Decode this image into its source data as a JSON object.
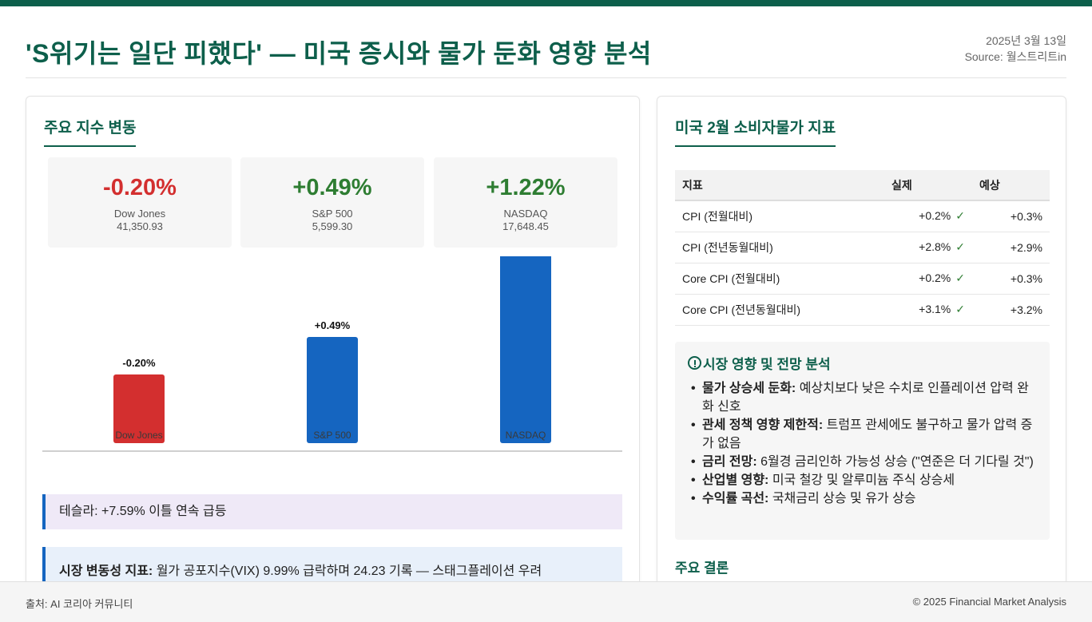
{
  "header": {
    "title": "'S위기는 일단 피했다' — 미국 증시와 물가 둔화 영향 분석",
    "date": "2025년 3월 13일",
    "source": "Source: 월스트리트in"
  },
  "left_panel": {
    "section_title": "주요 지수 변동",
    "stats": [
      {
        "change": "-0.20%",
        "name": "Dow Jones",
        "value": "41,350.93"
      },
      {
        "change": "+0.49%",
        "name": "S&P 500",
        "value": "5,599.30"
      },
      {
        "change": "+1.22%",
        "name": "NASDAQ",
        "value": "17,648.45"
      }
    ],
    "notes": {
      "tesla": "테슬라: +7.59% 이틀 연속 급등",
      "vix_label": "시장 변동성 지표:",
      "vix_text": " 월가 공포지수(VIX) 9.99% 급락하며 24.23 기록 — 스태그플레이션 우려"
    }
  },
  "chart_data": {
    "type": "bar",
    "categories": [
      "Dow Jones",
      "S&P 500",
      "NASDAQ"
    ],
    "values": [
      -0.2,
      0.49,
      1.22
    ],
    "labels": [
      "-0.20%",
      "+0.49%",
      "+1.22%"
    ],
    "colors": [
      "#d32f2f",
      "#1565c0",
      "#1565c0"
    ],
    "title": "",
    "xlabel": "",
    "ylabel": ""
  },
  "right_panel": {
    "section_title": "미국 2월 소비자물가 지표",
    "table": {
      "headers": [
        "지표",
        "실제",
        "예상"
      ],
      "rows": [
        {
          "indicator": "CPI (전월대비)",
          "actual": "+0.2%",
          "expected": "+0.3%"
        },
        {
          "indicator": "CPI (전년동월대비)",
          "actual": "+2.8%",
          "expected": "+2.9%"
        },
        {
          "indicator": "Core CPI (전월대비)",
          "actual": "+0.2%",
          "expected": "+0.3%"
        },
        {
          "indicator": "Core CPI (전년동월대비)",
          "actual": "+3.1%",
          "expected": "+3.2%"
        }
      ],
      "check_mark": "✓"
    },
    "analysis": {
      "title": "시장 영향 및 전망 분석",
      "icon": "info-icon",
      "items": [
        {
          "label": "물가 상승세 둔화:",
          "text": " 예상치보다 낮은 수치로 인플레이션 압력 완화 신호"
        },
        {
          "label": "관세 정책 영향 제한적:",
          "text": " 트럼프 관세에도 불구하고 물가 압력 증가 없음"
        },
        {
          "label": "금리 전망:",
          "text": " 6월경 금리인하 가능성 상승 (\"연준은 더 기다릴 것\")"
        },
        {
          "label": "산업별 영향:",
          "text": " 미국 철강 및 알루미늄 주식 상승세"
        },
        {
          "label": "수익률 곡선:",
          "text": " 국채금리 상승 및 유가 상승"
        }
      ]
    },
    "conclusion_title": "주요 결론"
  },
  "footer": {
    "left": "출처: AI 코리아 커뮤니티",
    "right": "© 2025 Financial Market Analysis"
  },
  "colors": {
    "brand": "#0d5f4b",
    "negative": "#d32f2f",
    "positive": "#2e7d32",
    "bar_blue": "#1565c0"
  }
}
